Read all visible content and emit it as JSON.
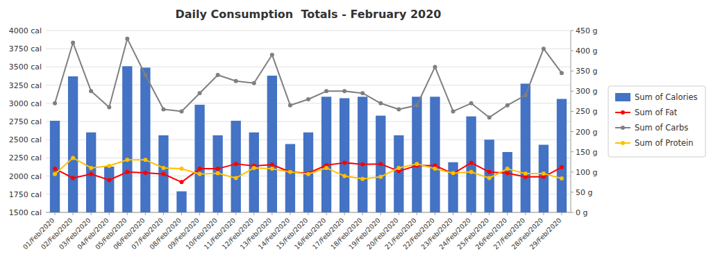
{
  "chart_data": {
    "type": "bar",
    "title": "Daily Consumption  Totals - February 2020",
    "categories": [
      "01/Feb/2020",
      "02/Feb/2020",
      "03/Feb/2020",
      "04/Feb/2020",
      "05/Feb/2020",
      "06/Feb/2020",
      "07/Feb/2020",
      "08/Feb/2020",
      "09/Feb/2020",
      "10/Feb/2020",
      "11/Feb/2020",
      "12/Feb/2020",
      "13/Feb/2020",
      "14/Feb/2020",
      "15/Feb/2020",
      "16/Feb/2020",
      "17/Feb/2020",
      "18/Feb/2020",
      "19/Feb/2020",
      "20/Feb/2020",
      "21/Feb/2020",
      "22/Feb/2020",
      "23/Feb/2020",
      "24/Feb/2020",
      "25/Feb/2020",
      "26/Feb/2020",
      "27/Feb/2020",
      "28/Feb/2020",
      "29/Feb/2020"
    ],
    "series": [
      {
        "name": "Sum of Calories",
        "type": "bar",
        "color": "#4472C4",
        "values": [
          2760,
          3370,
          2600,
          2130,
          3510,
          3490,
          2560,
          1790,
          2980,
          2560,
          2760,
          2600,
          3380,
          2440,
          2600,
          3090,
          3070,
          3090,
          2830,
          2560,
          3090,
          3090,
          2190,
          2820,
          2500,
          2330,
          3270,
          2430,
          3060
        ]
      },
      {
        "name": "Sum of Fat",
        "type": "line",
        "color": "#FF0000",
        "marker": "circle",
        "axis": "y2",
        "values": [
          108,
          85,
          95,
          80,
          100,
          98,
          95,
          75,
          108,
          108,
          120,
          115,
          118,
          100,
          97,
          117,
          123,
          119,
          120,
          102,
          116,
          116,
          96,
          123,
          100,
          97,
          88,
          88,
          112
        ]
      },
      {
        "name": "Sum of Carbs",
        "type": "line",
        "color": "#7F7F7F",
        "marker": "circle",
        "axis": "y2",
        "values": [
          270,
          420,
          300,
          260,
          430,
          340,
          255,
          250,
          295,
          340,
          325,
          320,
          390,
          265,
          280,
          300,
          300,
          295,
          270,
          255,
          265,
          360,
          250,
          270,
          235,
          265,
          290,
          405,
          345
        ]
      },
      {
        "name": "Sum of Protein",
        "type": "line",
        "color": "#FFC000",
        "marker": "circle",
        "axis": "y2",
        "values": [
          95,
          135,
          110,
          115,
          130,
          130,
          110,
          108,
          95,
          97,
          85,
          110,
          108,
          100,
          95,
          110,
          90,
          83,
          88,
          110,
          120,
          108,
          97,
          100,
          85,
          108,
          96,
          96,
          84
        ]
      }
    ],
    "ylim": [
      1500,
      4000
    ],
    "yticks": [
      {
        "value": 1500,
        "label": "1500 cal"
      },
      {
        "value": 1750,
        "label": "1750 cal"
      },
      {
        "value": 2000,
        "label": "2000 cal"
      },
      {
        "value": 2250,
        "label": "2250 cal"
      },
      {
        "value": 2500,
        "label": "2500 cal"
      },
      {
        "value": 2750,
        "label": "2750 cal"
      },
      {
        "value": 3000,
        "label": "3000 cal"
      },
      {
        "value": 3250,
        "label": "3250 cal"
      },
      {
        "value": 3500,
        "label": "3500 cal"
      },
      {
        "value": 3750,
        "label": "3750 cal"
      },
      {
        "value": 4000,
        "label": "4000 cal"
      }
    ],
    "y2lim": [
      0,
      450
    ],
    "y2ticks": [
      {
        "value": 0,
        "label": "0 g"
      },
      {
        "value": 50,
        "label": "50 g"
      },
      {
        "value": 100,
        "label": "100 g"
      },
      {
        "value": 150,
        "label": "150 g"
      },
      {
        "value": 200,
        "label": "200 g"
      },
      {
        "value": 250,
        "label": "250 g"
      },
      {
        "value": 300,
        "label": "300 g"
      },
      {
        "value": 350,
        "label": "350 g"
      },
      {
        "value": 400,
        "label": "400 g"
      },
      {
        "value": 450,
        "label": "450 g"
      }
    ],
    "grid": true,
    "legend": "right"
  }
}
